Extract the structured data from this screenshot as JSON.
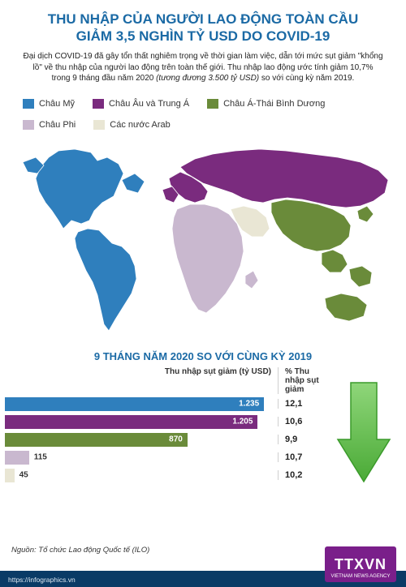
{
  "title_line1": "THU NHẬP CỦA NGƯỜI LAO ĐỘNG TOÀN CẦU",
  "title_line2": "GIẢM 3,5 NGHÌN TỶ USD DO COVID-19",
  "title_color": "#1b6aa5",
  "subtitle_a": "Đại dịch COVID-19 đã gây tổn thất nghiêm trọng về thời gian làm việc, dẫn tới mức sụt giảm \"khổng lồ\" về thu nhập của người lao động trên toàn thế giới. Thu nhập lao động ước tính giảm 10,7% trong 9 tháng đầu năm 2020 ",
  "subtitle_em": "(tương đương 3.500 tỷ USD)",
  "subtitle_b": " so với cùng kỳ năm 2019.",
  "legend": [
    {
      "label": "Châu Mỹ",
      "color": "#2f7fbd"
    },
    {
      "label": "Châu Âu và Trung Á",
      "color": "#7a2b7e"
    },
    {
      "label": "Châu Á-Thái Bình Dương",
      "color": "#6a8b3a"
    },
    {
      "label": "Châu Phi",
      "color": "#c9b8cf"
    },
    {
      "label": "Các nước Arab",
      "color": "#e9e6d4"
    }
  ],
  "map_colors": {
    "americas": "#2f7fbd",
    "europe_ca": "#7a2b7e",
    "asia_pac": "#6a8b3a",
    "africa": "#c9b8cf",
    "arab": "#e9e6d4",
    "stroke": "#ffffff"
  },
  "section_title": "9 THÁNG NĂM 2020 SO VỚI CÙNG KỲ 2019",
  "section_title_color": "#1b6aa5",
  "chart": {
    "type": "bar",
    "col1_header": "Thu nhập sụt giảm (tỷ USD)",
    "col2_header": "% Thu nhập sụt giảm",
    "max_value": 1300,
    "rows": [
      {
        "value": 1235,
        "value_label": "1.235",
        "pct": "12,1",
        "color": "#2f7fbd",
        "label_inside": true
      },
      {
        "value": 1205,
        "value_label": "1.205",
        "pct": "10,6",
        "color": "#7a2b7e",
        "label_inside": true
      },
      {
        "value": 870,
        "value_label": "870",
        "pct": "9,9",
        "color": "#6a8b3a",
        "label_inside": true
      },
      {
        "value": 115,
        "value_label": "115",
        "pct": "10,7",
        "color": "#c9b8cf",
        "label_inside": false
      },
      {
        "value": 45,
        "value_label": "45",
        "pct": "10,2",
        "color": "#e9e6d4",
        "label_inside": false
      }
    ],
    "arrow_fill": "#5cb947",
    "arrow_stroke": "#3a9a2a"
  },
  "source": "Nguồn: Tổ chức Lao động Quốc tế (ILO)",
  "footer_url": "https://infographics.vn",
  "logo_text": "TTXVN",
  "logo_sub": "VIETNAM NEWS AGENCY",
  "logo_bg": "#7a1f8a"
}
